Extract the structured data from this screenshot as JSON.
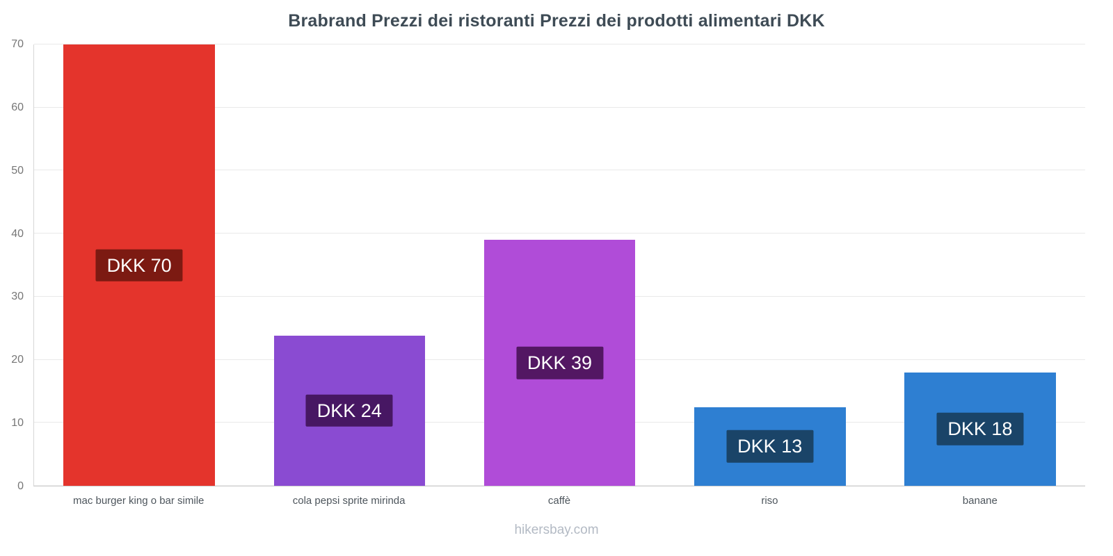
{
  "title": "Brabrand Prezzi dei ristoranti Prezzi dei prodotti alimentari DKK",
  "footer": "hikersbay.com",
  "chart_data": {
    "type": "bar",
    "title": "Brabrand Prezzi dei ristoranti Prezzi dei prodotti alimentari DKK",
    "categories": [
      "mac burger king o bar simile",
      "cola pepsi sprite mirinda",
      "caffè",
      "riso",
      "banane"
    ],
    "values": [
      70,
      23.8,
      39,
      12.5,
      18
    ],
    "value_labels": [
      "DKK 70",
      "DKK 24",
      "DKK 39",
      "DKK 13",
      "DKK 18"
    ],
    "bar_colors": [
      "#e4342c",
      "#8a4bd2",
      "#b04cd8",
      "#2e7fd2",
      "#2e7fd2"
    ],
    "label_colors": [
      "#7c1a12",
      "#471763",
      "#531763",
      "#1a4468",
      "#1a4468"
    ],
    "ylim": [
      0,
      70
    ],
    "yticks": [
      0,
      10,
      20,
      30,
      40,
      50,
      60,
      70
    ],
    "grid": true,
    "legend_position": "none",
    "xlabel": "",
    "ylabel": "DKK"
  }
}
